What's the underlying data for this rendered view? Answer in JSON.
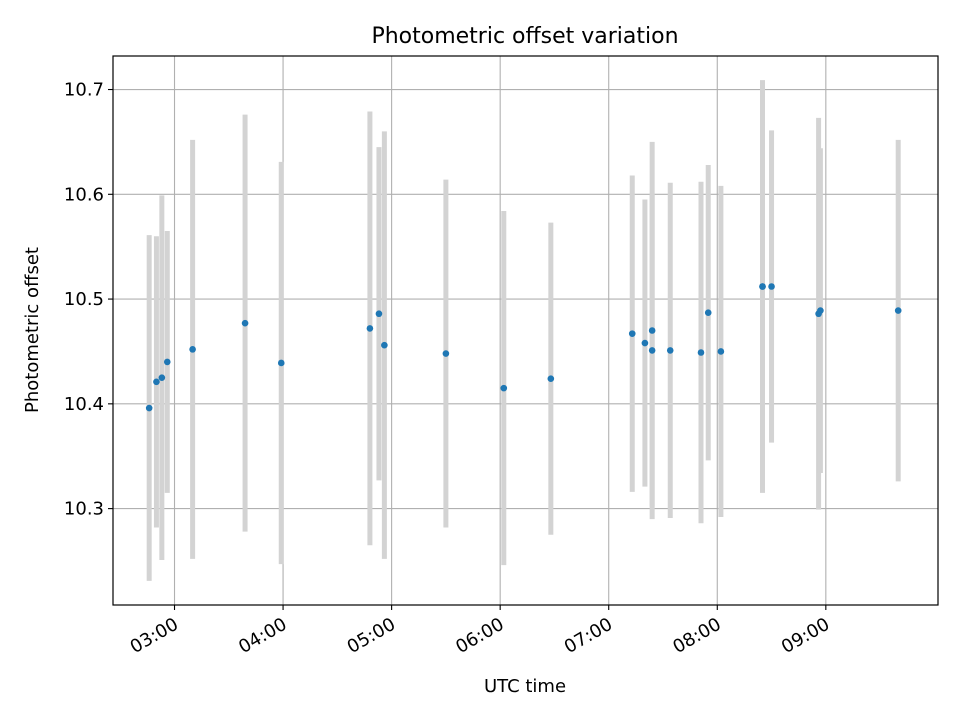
{
  "chart_data": {
    "type": "scatter",
    "title": "Photometric offset variation",
    "xlabel": "UTC time",
    "ylabel": "Photometric offset",
    "x_unit": "UTC time (HH:MM)",
    "xlim": [
      "02:26",
      "10:02"
    ],
    "ylim": [
      10.208,
      10.732
    ],
    "grid": true,
    "x_ticks": [
      {
        "value": "03:00",
        "label": "03:00"
      },
      {
        "value": "04:00",
        "label": "04:00"
      },
      {
        "value": "05:00",
        "label": "05:00"
      },
      {
        "value": "06:00",
        "label": "06:00"
      },
      {
        "value": "07:00",
        "label": "07:00"
      },
      {
        "value": "08:00",
        "label": "08:00"
      },
      {
        "value": "09:00",
        "label": "09:00"
      }
    ],
    "y_ticks": [
      {
        "value": 10.3,
        "label": "10.3"
      },
      {
        "value": 10.4,
        "label": "10.4"
      },
      {
        "value": 10.5,
        "label": "10.5"
      },
      {
        "value": 10.6,
        "label": "10.6"
      },
      {
        "value": 10.7,
        "label": "10.7"
      }
    ],
    "colors": {
      "points": "#1f77b4",
      "errorbars": "#d3d3d3",
      "grid": "#b0b0b0"
    },
    "series": [
      {
        "points": [
          {
            "x": "02:46",
            "y": 10.396,
            "err": 0.165
          },
          {
            "x": "02:50",
            "y": 10.421,
            "err": 0.139
          },
          {
            "x": "02:53",
            "y": 10.425,
            "err": 0.174
          },
          {
            "x": "02:56",
            "y": 10.44,
            "err": 0.125
          },
          {
            "x": "03:10",
            "y": 10.452,
            "err": 0.2
          },
          {
            "x": "03:39",
            "y": 10.477,
            "err": 0.199
          },
          {
            "x": "03:59",
            "y": 10.439,
            "err": 0.192
          },
          {
            "x": "04:48",
            "y": 10.472,
            "err": 0.207
          },
          {
            "x": "04:53",
            "y": 10.486,
            "err": 0.159
          },
          {
            "x": "04:56",
            "y": 10.456,
            "err": 0.204
          },
          {
            "x": "05:30",
            "y": 10.448,
            "err": 0.166
          },
          {
            "x": "06:02",
            "y": 10.415,
            "err": 0.169
          },
          {
            "x": "06:28",
            "y": 10.424,
            "err": 0.149
          },
          {
            "x": "07:13",
            "y": 10.467,
            "err": 0.151
          },
          {
            "x": "07:20",
            "y": 10.458,
            "err": 0.137
          },
          {
            "x": "07:24",
            "y": 10.47,
            "err": 0.18
          },
          {
            "x": "07:24",
            "y": 10.451,
            "err": 0.149
          },
          {
            "x": "07:34",
            "y": 10.451,
            "err": 0.16
          },
          {
            "x": "07:51",
            "y": 10.449,
            "err": 0.163
          },
          {
            "x": "07:55",
            "y": 10.487,
            "err": 0.141
          },
          {
            "x": "08:02",
            "y": 10.45,
            "err": 0.158
          },
          {
            "x": "08:25",
            "y": 10.512,
            "err": 0.197
          },
          {
            "x": "08:25",
            "y": 10.512,
            "err": 0.177
          },
          {
            "x": "08:30",
            "y": 10.512,
            "err": 0.149
          },
          {
            "x": "08:56",
            "y": 10.486,
            "err": 0.187
          },
          {
            "x": "08:57",
            "y": 10.489,
            "err": 0.155
          },
          {
            "x": "09:40",
            "y": 10.489,
            "err": 0.163
          }
        ]
      }
    ]
  }
}
